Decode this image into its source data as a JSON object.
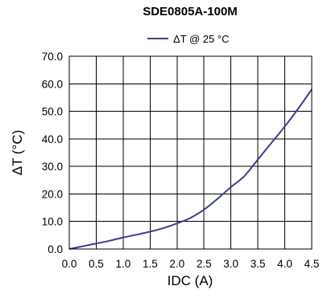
{
  "chart_data": {
    "type": "line",
    "title": "SDE0805A-100M",
    "xlabel": "IDC (A)",
    "ylabel": "ΔT (°C)",
    "xlim": [
      0,
      4.5
    ],
    "ylim": [
      0,
      70
    ],
    "x_ticks": [
      "0.0",
      "0.5",
      "1.0",
      "1.5",
      "2.0",
      "2.5",
      "3.0",
      "3.5",
      "4.0",
      "4.5"
    ],
    "y_ticks": [
      "0.0",
      "10.0",
      "20.0",
      "30.0",
      "40.0",
      "50.0",
      "60.0",
      "70.0"
    ],
    "grid": true,
    "legend_position": "top-center",
    "series": [
      {
        "name": "ΔT @ 25 °C",
        "color": "#3b3f8f",
        "x": [
          0.0,
          0.25,
          0.5,
          0.75,
          1.0,
          1.25,
          1.5,
          1.75,
          2.0,
          2.25,
          2.5,
          2.75,
          3.0,
          3.25,
          3.5,
          3.75,
          4.0,
          4.25,
          4.5
        ],
        "y": [
          0.0,
          1.0,
          2.0,
          3.0,
          4.2,
          5.2,
          6.3,
          7.6,
          9.3,
          11.3,
          14.3,
          18.2,
          22.5,
          26.5,
          32.5,
          38.5,
          44.5,
          51.0,
          58.0
        ]
      }
    ]
  }
}
